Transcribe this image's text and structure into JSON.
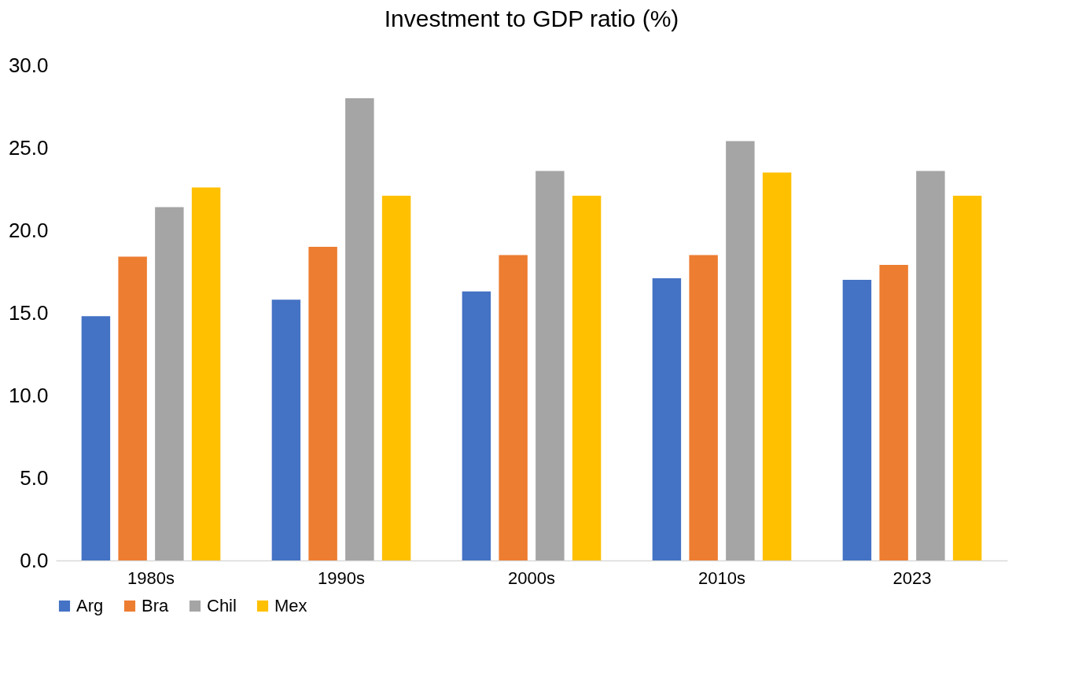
{
  "chart_data": {
    "type": "bar",
    "title": "Investment to GDP ratio (%)",
    "categories": [
      "1980s",
      "1990s",
      "2000s",
      "2010s",
      "2023"
    ],
    "series": [
      {
        "name": "Arg",
        "color": "#4472c4",
        "values": [
          14.8,
          15.8,
          16.3,
          17.1,
          17.0
        ]
      },
      {
        "name": "Bra",
        "color": "#ed7d31",
        "values": [
          18.4,
          19.0,
          18.5,
          18.5,
          17.9
        ]
      },
      {
        "name": "Chil",
        "color": "#a5a5a5",
        "values": [
          21.4,
          28.0,
          23.6,
          25.4,
          23.6
        ]
      },
      {
        "name": "Mex",
        "color": "#ffc000",
        "values": [
          22.6,
          22.1,
          22.1,
          23.5,
          22.1
        ]
      }
    ],
    "ylim": [
      0,
      30
    ],
    "yticks": [
      {
        "value": 0,
        "label": "0.0"
      },
      {
        "value": 5,
        "label": "5.0"
      },
      {
        "value": 10,
        "label": "10.0"
      },
      {
        "value": 15,
        "label": "15.0"
      },
      {
        "value": 20,
        "label": "20.0"
      },
      {
        "value": 25,
        "label": "25.0"
      },
      {
        "value": 30,
        "label": "30.0"
      }
    ],
    "grid": false,
    "legend": "bottom"
  }
}
